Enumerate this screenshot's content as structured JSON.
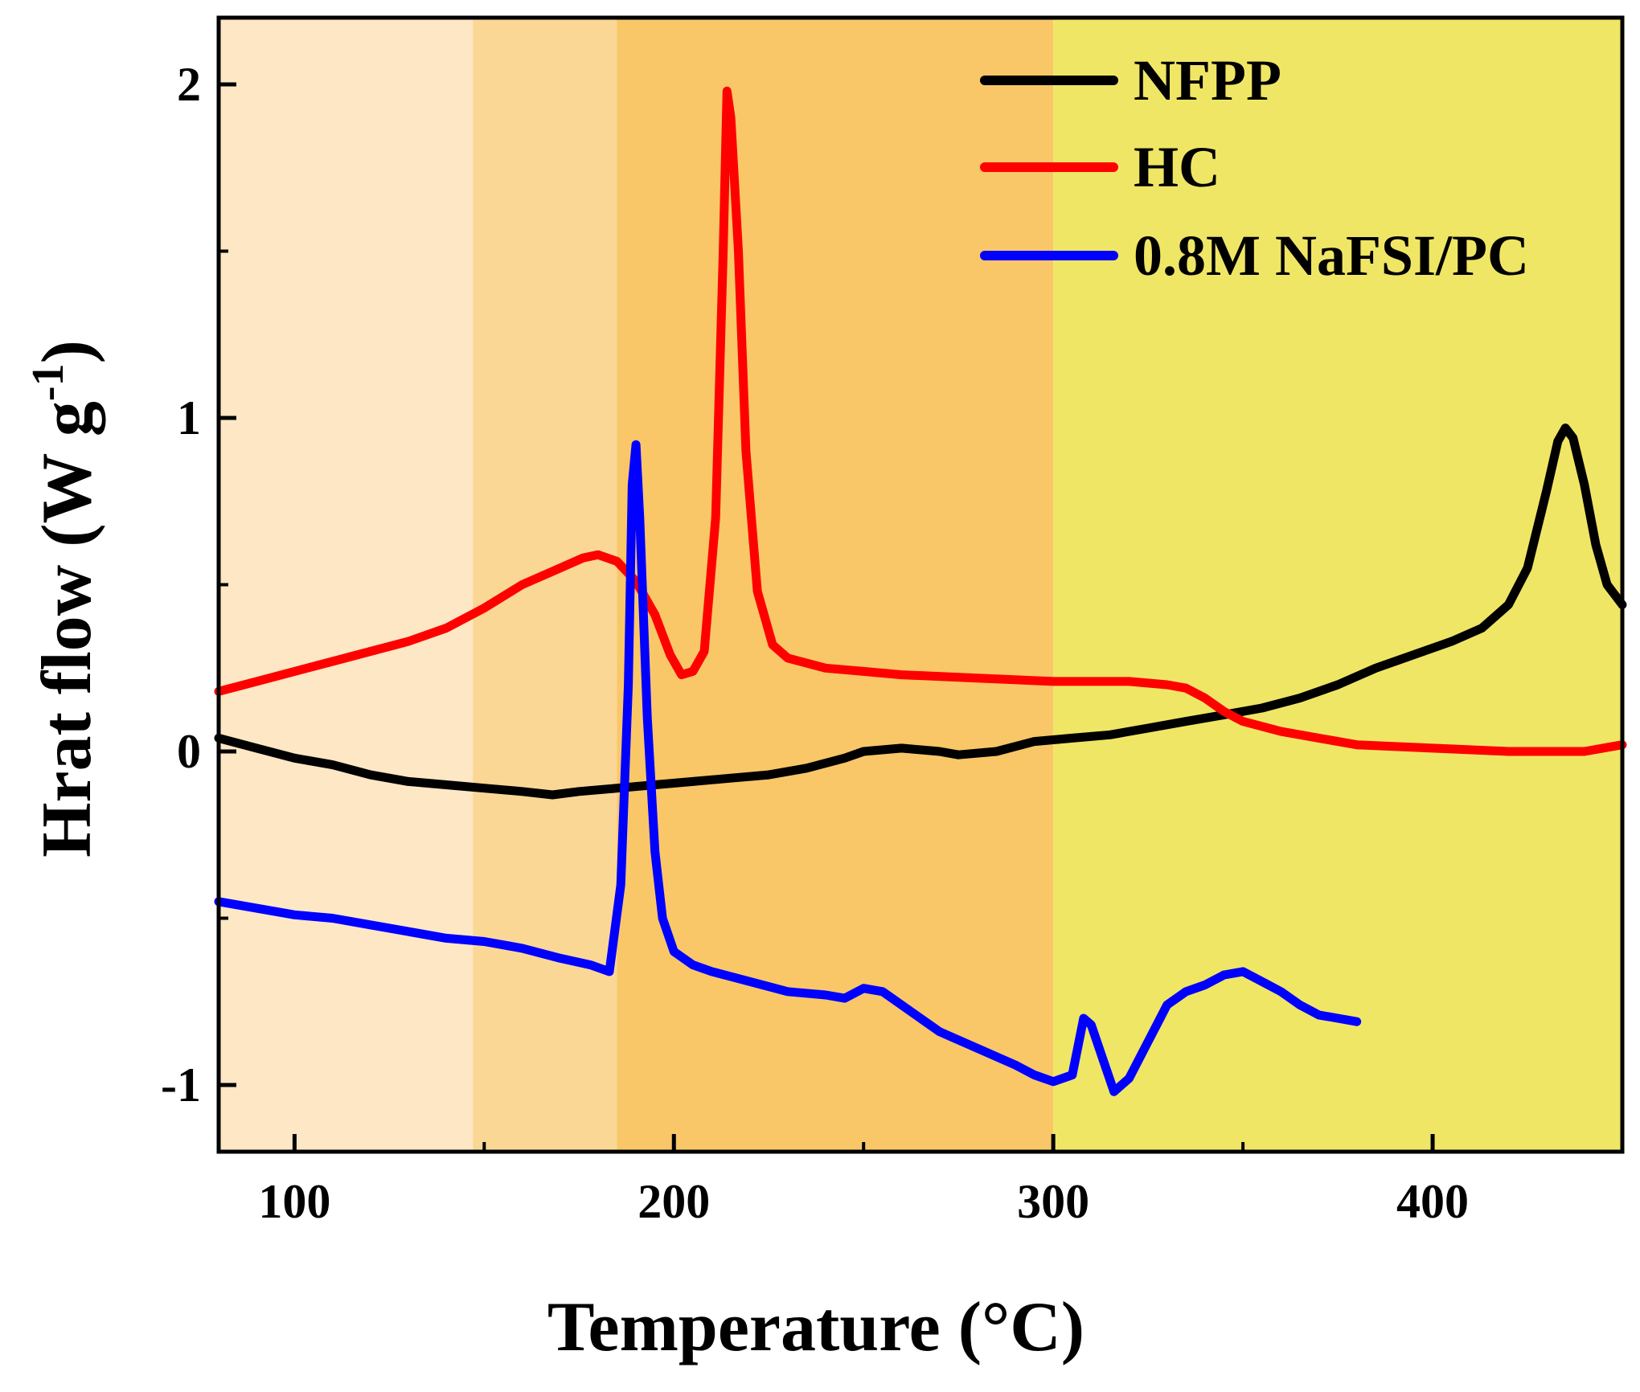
{
  "chart_data": {
    "type": "line",
    "title": "",
    "xlabel": "Temperature (°C)",
    "ylabel_main": "Hrat flow (W g",
    "ylabel_sup": "-1",
    "ylabel_close": ")",
    "xlim": [
      80,
      450
    ],
    "ylim": [
      -1.2,
      2.2
    ],
    "xticks": [
      100,
      200,
      300,
      400
    ],
    "xticks_minor": [
      150,
      250,
      350
    ],
    "yticks": [
      -1,
      0,
      1,
      2
    ],
    "yticks_minor": [
      -0.5,
      0.5,
      1.5
    ],
    "legend_position": "top-right",
    "regions": [
      {
        "x0": 80,
        "x1": 147,
        "color": "#FDE7C4"
      },
      {
        "x0": 147,
        "x1": 185,
        "color": "#FBD796"
      },
      {
        "x0": 185,
        "x1": 300,
        "color": "#F9C768"
      },
      {
        "x0": 300,
        "x1": 450,
        "color": "#F0E665"
      }
    ],
    "series": [
      {
        "name": "NFPP",
        "color": "#000000",
        "points": [
          [
            80,
            0.04
          ],
          [
            90,
            0.01
          ],
          [
            100,
            -0.02
          ],
          [
            110,
            -0.04
          ],
          [
            120,
            -0.07
          ],
          [
            130,
            -0.09
          ],
          [
            140,
            -0.1
          ],
          [
            150,
            -0.11
          ],
          [
            160,
            -0.12
          ],
          [
            168,
            -0.13
          ],
          [
            175,
            -0.12
          ],
          [
            185,
            -0.11
          ],
          [
            195,
            -0.1
          ],
          [
            205,
            -0.09
          ],
          [
            215,
            -0.08
          ],
          [
            225,
            -0.07
          ],
          [
            235,
            -0.05
          ],
          [
            245,
            -0.02
          ],
          [
            250,
            0.0
          ],
          [
            260,
            0.01
          ],
          [
            270,
            0.0
          ],
          [
            275,
            -0.01
          ],
          [
            285,
            0.0
          ],
          [
            295,
            0.03
          ],
          [
            305,
            0.04
          ],
          [
            315,
            0.05
          ],
          [
            325,
            0.07
          ],
          [
            335,
            0.09
          ],
          [
            345,
            0.11
          ],
          [
            355,
            0.13
          ],
          [
            365,
            0.16
          ],
          [
            375,
            0.2
          ],
          [
            385,
            0.25
          ],
          [
            395,
            0.29
          ],
          [
            405,
            0.33
          ],
          [
            413,
            0.37
          ],
          [
            420,
            0.44
          ],
          [
            425,
            0.55
          ],
          [
            430,
            0.78
          ],
          [
            433,
            0.93
          ],
          [
            435,
            0.97
          ],
          [
            437,
            0.94
          ],
          [
            440,
            0.8
          ],
          [
            443,
            0.62
          ],
          [
            446,
            0.5
          ],
          [
            450,
            0.44
          ]
        ]
      },
      {
        "name": "HC",
        "color": "#FF0000",
        "points": [
          [
            80,
            0.18
          ],
          [
            90,
            0.21
          ],
          [
            100,
            0.24
          ],
          [
            110,
            0.27
          ],
          [
            120,
            0.3
          ],
          [
            130,
            0.33
          ],
          [
            140,
            0.37
          ],
          [
            150,
            0.43
          ],
          [
            160,
            0.5
          ],
          [
            170,
            0.55
          ],
          [
            176,
            0.58
          ],
          [
            180,
            0.59
          ],
          [
            185,
            0.57
          ],
          [
            190,
            0.51
          ],
          [
            195,
            0.41
          ],
          [
            199,
            0.29
          ],
          [
            202,
            0.23
          ],
          [
            205,
            0.24
          ],
          [
            208,
            0.3
          ],
          [
            211,
            0.7
          ],
          [
            213,
            1.5
          ],
          [
            214,
            1.98
          ],
          [
            215,
            1.9
          ],
          [
            217,
            1.5
          ],
          [
            219,
            0.9
          ],
          [
            222,
            0.48
          ],
          [
            226,
            0.32
          ],
          [
            230,
            0.28
          ],
          [
            240,
            0.25
          ],
          [
            250,
            0.24
          ],
          [
            260,
            0.23
          ],
          [
            280,
            0.22
          ],
          [
            300,
            0.21
          ],
          [
            320,
            0.21
          ],
          [
            330,
            0.2
          ],
          [
            335,
            0.19
          ],
          [
            340,
            0.16
          ],
          [
            345,
            0.12
          ],
          [
            350,
            0.09
          ],
          [
            360,
            0.06
          ],
          [
            370,
            0.04
          ],
          [
            380,
            0.02
          ],
          [
            400,
            0.01
          ],
          [
            420,
            0.0
          ],
          [
            440,
            0.0
          ],
          [
            450,
            0.02
          ]
        ]
      },
      {
        "name": "0.8M NaFSI/PC",
        "color": "#0000FF",
        "points": [
          [
            80,
            -0.45
          ],
          [
            90,
            -0.47
          ],
          [
            100,
            -0.49
          ],
          [
            110,
            -0.5
          ],
          [
            120,
            -0.52
          ],
          [
            130,
            -0.54
          ],
          [
            140,
            -0.56
          ],
          [
            150,
            -0.57
          ],
          [
            160,
            -0.59
          ],
          [
            170,
            -0.62
          ],
          [
            178,
            -0.64
          ],
          [
            183,
            -0.66
          ],
          [
            186,
            -0.4
          ],
          [
            188,
            0.2
          ],
          [
            189,
            0.8
          ],
          [
            190,
            0.92
          ],
          [
            191,
            0.7
          ],
          [
            193,
            0.1
          ],
          [
            195,
            -0.3
          ],
          [
            197,
            -0.5
          ],
          [
            200,
            -0.6
          ],
          [
            205,
            -0.64
          ],
          [
            210,
            -0.66
          ],
          [
            220,
            -0.69
          ],
          [
            230,
            -0.72
          ],
          [
            240,
            -0.73
          ],
          [
            245,
            -0.74
          ],
          [
            250,
            -0.71
          ],
          [
            255,
            -0.72
          ],
          [
            260,
            -0.76
          ],
          [
            270,
            -0.84
          ],
          [
            280,
            -0.89
          ],
          [
            290,
            -0.94
          ],
          [
            295,
            -0.97
          ],
          [
            300,
            -0.99
          ],
          [
            305,
            -0.97
          ],
          [
            308,
            -0.8
          ],
          [
            310,
            -0.82
          ],
          [
            313,
            -0.92
          ],
          [
            316,
            -1.02
          ],
          [
            320,
            -0.98
          ],
          [
            325,
            -0.87
          ],
          [
            330,
            -0.76
          ],
          [
            335,
            -0.72
          ],
          [
            340,
            -0.7
          ],
          [
            345,
            -0.67
          ],
          [
            350,
            -0.66
          ],
          [
            355,
            -0.69
          ],
          [
            360,
            -0.72
          ],
          [
            365,
            -0.76
          ],
          [
            370,
            -0.79
          ],
          [
            375,
            -0.8
          ],
          [
            380,
            -0.81
          ]
        ]
      }
    ]
  }
}
